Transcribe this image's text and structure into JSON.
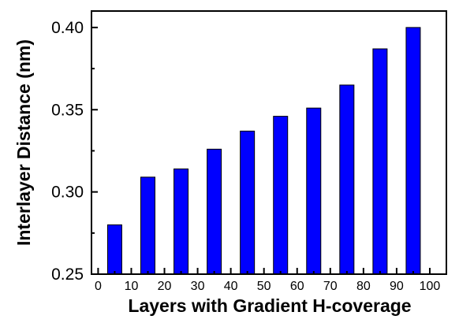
{
  "chart_data": {
    "type": "bar",
    "x": [
      5,
      15,
      25,
      35,
      45,
      55,
      65,
      75,
      85,
      95
    ],
    "values": [
      0.28,
      0.309,
      0.314,
      0.326,
      0.337,
      0.346,
      0.351,
      0.365,
      0.387,
      0.4
    ],
    "xlabel": "Layers with Gradient H-coverage",
    "ylabel": "Interlayer Distance (nm)",
    "xlim": [
      -2,
      105
    ],
    "ylim": [
      0.25,
      0.41
    ],
    "xticks": [
      0,
      10,
      20,
      30,
      40,
      50,
      60,
      70,
      80,
      90,
      100
    ],
    "yticks": [
      0.25,
      0.3,
      0.35,
      0.4
    ],
    "ytick_labels": [
      "0.25",
      "0.30",
      "0.35",
      "0.40"
    ],
    "bar_color": "#0000ff",
    "grid": false
  }
}
